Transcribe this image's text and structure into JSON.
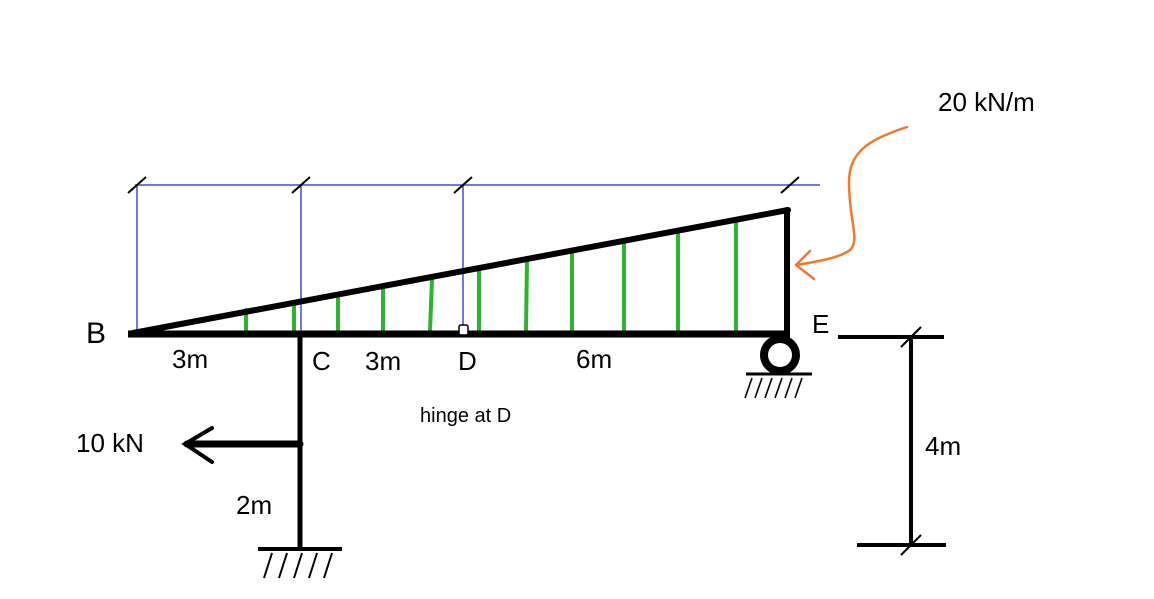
{
  "diagram": {
    "labels": {
      "point_b": "B",
      "point_c": "C",
      "point_d": "D",
      "point_e": "E",
      "dim_bc": "3m",
      "dim_cd": "3m",
      "dim_de": "6m",
      "dim_column": "2m",
      "dim_height": "4m",
      "load_intensity": "20 kN/m",
      "point_load": "10 kN",
      "hinge_note": "hinge at D"
    },
    "colors": {
      "structure": "#000000",
      "load_hatch": "#2bb52b",
      "dimension_lines": "#3b4fd8",
      "pointer_arrow": "#f07a2a"
    }
  }
}
